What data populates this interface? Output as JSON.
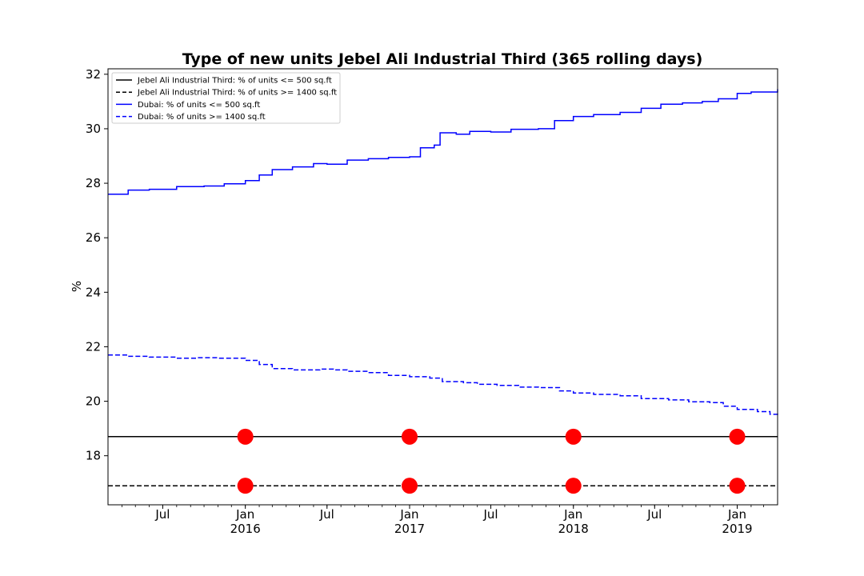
{
  "chart_data": {
    "type": "line",
    "title": "Type of new units Jebel Ali Industrial Third (365 rolling days)",
    "xlabel": "",
    "ylabel": "%",
    "xlim": [
      "2015-03-01",
      "2019-04-01"
    ],
    "ylim": [
      16.2,
      32.2
    ],
    "yticks": [
      18,
      20,
      22,
      24,
      26,
      28,
      30,
      32
    ],
    "xticks": [
      {
        "date": "2015-07-01",
        "label": "Jul",
        "sublabel": ""
      },
      {
        "date": "2016-01-01",
        "label": "Jan",
        "sublabel": "2016"
      },
      {
        "date": "2016-07-01",
        "label": "Jul",
        "sublabel": ""
      },
      {
        "date": "2017-01-01",
        "label": "Jan",
        "sublabel": "2017"
      },
      {
        "date": "2017-07-01",
        "label": "Jul",
        "sublabel": ""
      },
      {
        "date": "2018-01-01",
        "label": "Jan",
        "sublabel": "2018"
      },
      {
        "date": "2018-07-01",
        "label": "Jul",
        "sublabel": ""
      },
      {
        "date": "2019-01-01",
        "label": "Jan",
        "sublabel": "2019"
      }
    ],
    "legend_position": "top-left",
    "grid": false,
    "series": [
      {
        "name": "Jebel Ali Industrial Third: % of units <= 500 sq.ft",
        "color": "#000000",
        "style": "solid",
        "step": false,
        "points": [
          [
            "2015-03-01",
            18.7
          ],
          [
            "2019-04-01",
            18.7
          ]
        ]
      },
      {
        "name": "Jebel Ali Industrial Third: % of units >= 1400 sq.ft",
        "color": "#000000",
        "style": "dashed",
        "step": false,
        "points": [
          [
            "2015-03-01",
            16.9
          ],
          [
            "2019-04-01",
            16.9
          ]
        ]
      },
      {
        "name": "Dubai: % of units <= 500 sq.ft",
        "color": "#0000ff",
        "style": "solid",
        "step": true,
        "points": [
          [
            "2015-03-01",
            27.6
          ],
          [
            "2015-04-15",
            27.75
          ],
          [
            "2015-06-01",
            27.78
          ],
          [
            "2015-08-01",
            27.88
          ],
          [
            "2015-10-01",
            27.9
          ],
          [
            "2015-11-15",
            27.98
          ],
          [
            "2016-01-01",
            28.1
          ],
          [
            "2016-02-01",
            28.3
          ],
          [
            "2016-03-01",
            28.5
          ],
          [
            "2016-04-15",
            28.6
          ],
          [
            "2016-06-01",
            28.72
          ],
          [
            "2016-07-01",
            28.7
          ],
          [
            "2016-08-15",
            28.85
          ],
          [
            "2016-10-01",
            28.9
          ],
          [
            "2016-11-15",
            28.95
          ],
          [
            "2017-01-01",
            28.97
          ],
          [
            "2017-01-25",
            29.3
          ],
          [
            "2017-02-25",
            29.4
          ],
          [
            "2017-03-10",
            29.85
          ],
          [
            "2017-04-15",
            29.8
          ],
          [
            "2017-05-15",
            29.9
          ],
          [
            "2017-07-01",
            29.88
          ],
          [
            "2017-08-15",
            29.98
          ],
          [
            "2017-10-15",
            30.0
          ],
          [
            "2017-11-20",
            30.3
          ],
          [
            "2018-01-01",
            30.45
          ],
          [
            "2018-02-15",
            30.52
          ],
          [
            "2018-04-15",
            30.6
          ],
          [
            "2018-06-01",
            30.75
          ],
          [
            "2018-07-15",
            30.9
          ],
          [
            "2018-09-01",
            30.95
          ],
          [
            "2018-10-15",
            31.0
          ],
          [
            "2018-11-20",
            31.1
          ],
          [
            "2019-01-01",
            31.3
          ],
          [
            "2019-02-01",
            31.35
          ],
          [
            "2019-03-01",
            31.35
          ],
          [
            "2019-04-01",
            31.45
          ]
        ]
      },
      {
        "name": "Dubai: % of units >= 1400 sq.ft",
        "color": "#0000ff",
        "style": "dashed",
        "step": true,
        "points": [
          [
            "2015-03-01",
            21.7
          ],
          [
            "2015-04-15",
            21.65
          ],
          [
            "2015-06-01",
            21.62
          ],
          [
            "2015-08-01",
            21.58
          ],
          [
            "2015-09-15",
            21.6
          ],
          [
            "2015-11-01",
            21.58
          ],
          [
            "2016-01-01",
            21.5
          ],
          [
            "2016-02-01",
            21.35
          ],
          [
            "2016-03-01",
            21.2
          ],
          [
            "2016-04-15",
            21.15
          ],
          [
            "2016-06-15",
            21.18
          ],
          [
            "2016-07-15",
            21.15
          ],
          [
            "2016-08-15",
            21.1
          ],
          [
            "2016-10-01",
            21.05
          ],
          [
            "2016-11-15",
            20.95
          ],
          [
            "2017-01-01",
            20.9
          ],
          [
            "2017-02-15",
            20.85
          ],
          [
            "2017-03-15",
            20.72
          ],
          [
            "2017-05-01",
            20.68
          ],
          [
            "2017-06-01",
            20.62
          ],
          [
            "2017-07-15",
            20.58
          ],
          [
            "2017-09-01",
            20.52
          ],
          [
            "2017-10-15",
            20.5
          ],
          [
            "2017-12-01",
            20.38
          ],
          [
            "2018-01-01",
            20.3
          ],
          [
            "2018-02-15",
            20.25
          ],
          [
            "2018-04-15",
            20.2
          ],
          [
            "2018-06-01",
            20.1
          ],
          [
            "2018-08-01",
            20.05
          ],
          [
            "2018-09-15",
            19.98
          ],
          [
            "2018-11-01",
            19.95
          ],
          [
            "2018-12-01",
            19.82
          ],
          [
            "2019-01-01",
            19.7
          ],
          [
            "2019-02-15",
            19.62
          ],
          [
            "2019-03-15",
            19.52
          ],
          [
            "2019-04-01",
            19.48
          ]
        ]
      }
    ],
    "markers": {
      "color": "#ff0000",
      "dates": [
        "2016-01-01",
        "2017-01-01",
        "2018-01-01",
        "2019-01-01"
      ],
      "levels": [
        18.7,
        16.9
      ]
    }
  }
}
